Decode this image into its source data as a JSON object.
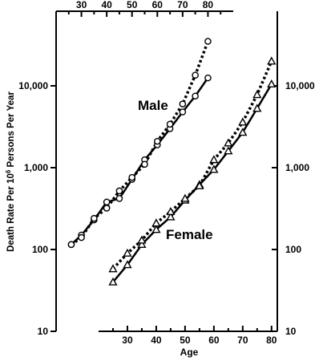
{
  "chart_data": {
    "type": "line",
    "title": "",
    "xlabel": "Age",
    "ylabel": "Death Rate Per 10",
    "ylabel_sup": "6",
    "ylabel_tail": " Persons Per Year",
    "yscale": "log",
    "ylim": [
      10,
      100000
    ],
    "y_ticks": [
      10,
      100,
      1000,
      10000
    ],
    "y_tick_labels": [
      "10",
      "100",
      "1,000",
      "10,000"
    ],
    "right_y_tick_labels": [
      "10",
      "100",
      "1,000",
      "10,000"
    ],
    "top_x_ticks": [
      "30",
      "40",
      "50",
      "60",
      "70",
      "80"
    ],
    "bottom_x_ticks": [
      "30",
      "40",
      "50",
      "60",
      "70",
      "80"
    ],
    "series": [
      {
        "name": "Male",
        "axis": "top",
        "x_range": [
          20,
          90
        ],
        "marker": "circle",
        "solid": [
          [
            26,
            115
          ],
          [
            30,
            150
          ],
          [
            35,
            230
          ],
          [
            40,
            380
          ],
          [
            45,
            420
          ],
          [
            50,
            720
          ],
          [
            55,
            1250
          ],
          [
            60,
            1900
          ],
          [
            65,
            3000
          ],
          [
            70,
            4800
          ],
          [
            75,
            7500
          ],
          [
            80,
            12500
          ]
        ],
        "dotted": [
          [
            26,
            115
          ],
          [
            30,
            140
          ],
          [
            35,
            240
          ],
          [
            40,
            320
          ],
          [
            45,
            520
          ],
          [
            50,
            760
          ],
          [
            55,
            1100
          ],
          [
            60,
            2100
          ],
          [
            65,
            3400
          ],
          [
            70,
            6000
          ],
          [
            75,
            13500
          ],
          [
            80,
            35000
          ]
        ]
      },
      {
        "name": "Female",
        "axis": "bottom",
        "x_range": [
          20,
          82
        ],
        "marker": "triangle",
        "solid": [
          [
            25,
            40
          ],
          [
            30,
            65
          ],
          [
            35,
            115
          ],
          [
            40,
            175
          ],
          [
            45,
            250
          ],
          [
            50,
            400
          ],
          [
            55,
            620
          ],
          [
            60,
            950
          ],
          [
            65,
            1600
          ],
          [
            70,
            2700
          ],
          [
            75,
            5300
          ],
          [
            80,
            10500
          ]
        ],
        "dotted": [
          [
            25,
            58
          ],
          [
            30,
            90
          ],
          [
            35,
            130
          ],
          [
            40,
            210
          ],
          [
            45,
            290
          ],
          [
            50,
            420
          ],
          [
            55,
            600
          ],
          [
            60,
            1250
          ],
          [
            65,
            2000
          ],
          [
            70,
            3600
          ],
          [
            75,
            7800
          ],
          [
            80,
            20000
          ]
        ]
      }
    ]
  }
}
